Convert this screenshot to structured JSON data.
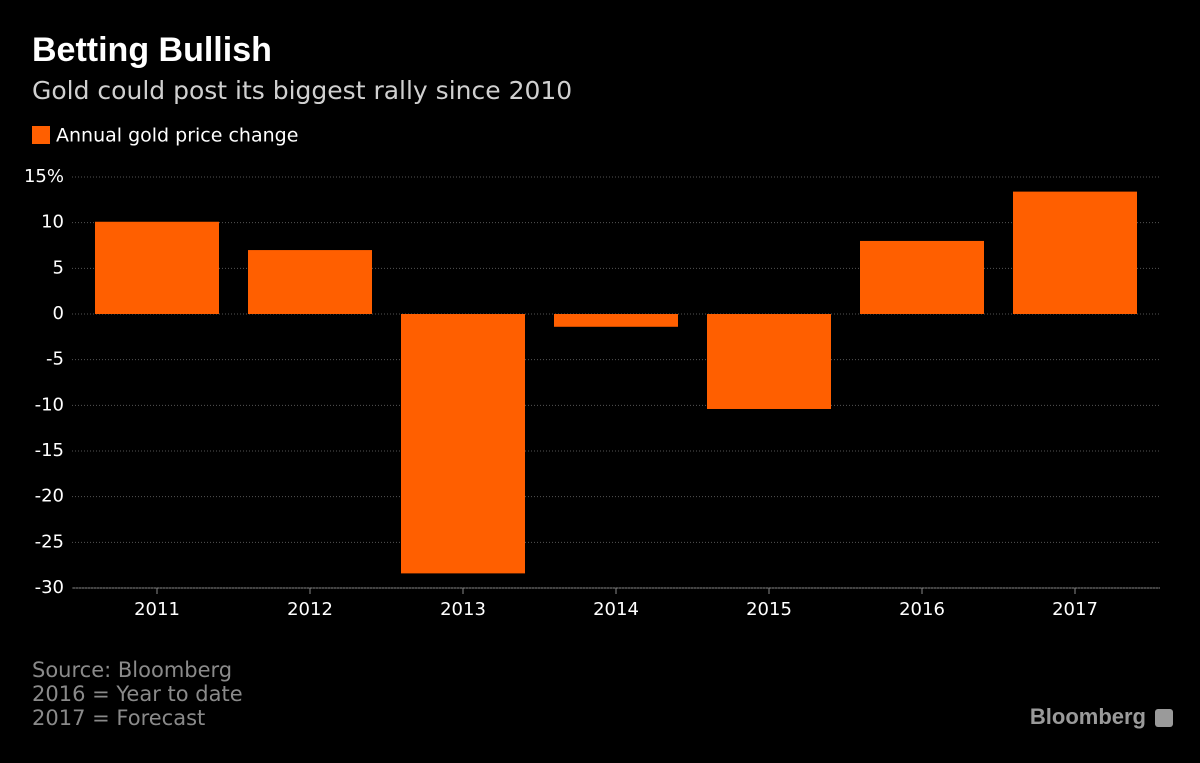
{
  "chart_data": {
    "type": "bar",
    "title": "Betting Bullish",
    "subtitle": "Gold could post its biggest rally since 2010",
    "categories": [
      "2011",
      "2012",
      "2013",
      "2014",
      "2015",
      "2016",
      "2017"
    ],
    "series": [
      {
        "name": "Annual gold price change",
        "color": "#ff5f00",
        "values": [
          10.1,
          7.0,
          -28.4,
          -1.4,
          -10.4,
          8.0,
          13.4
        ]
      }
    ],
    "ylim": [
      -30,
      15
    ],
    "yticks": [
      -30,
      -25,
      -20,
      -15,
      -10,
      -5,
      0,
      5,
      10,
      {
        "value": 15,
        "label": "15%"
      }
    ],
    "grid": true,
    "legend": "top-left",
    "notes": [
      "Source: Bloomberg",
      "2016 = Year to date",
      "2017 = Forecast"
    ],
    "logo": "Bloomberg"
  }
}
